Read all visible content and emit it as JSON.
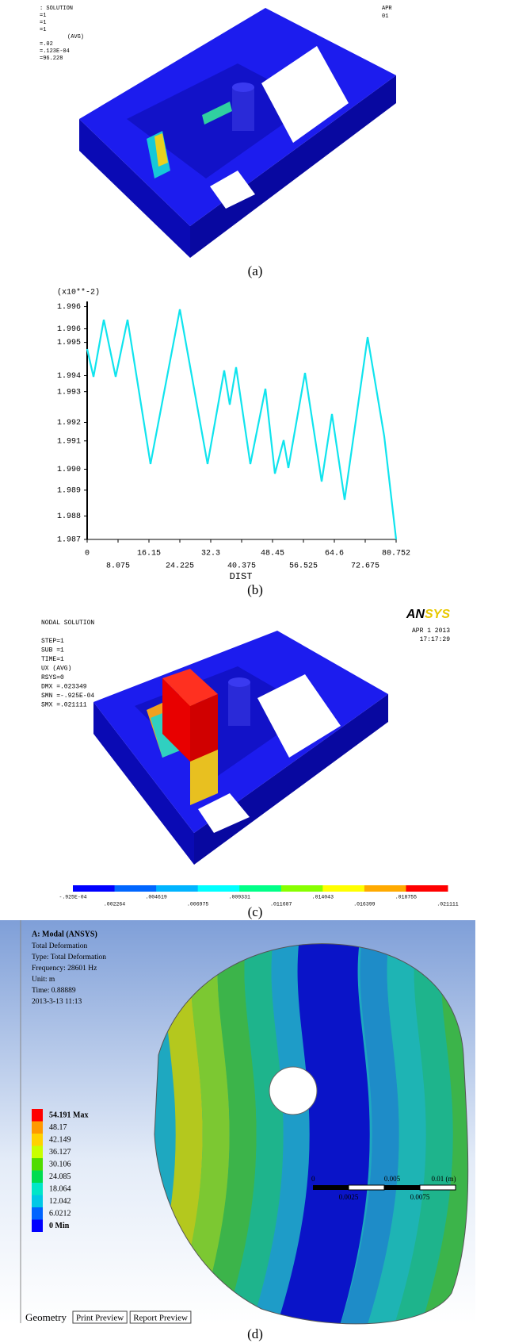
{
  "panel_a": {
    "caption": "(a)",
    "info_lines": [
      ": SOLUTION",
      "=1",
      "=1",
      "=1",
      "(AVG)",
      "=.02",
      "=.123E-04",
      "=96.228"
    ],
    "date_lines": [
      "APR",
      "01"
    ]
  },
  "chart_data": {
    "type": "line",
    "caption": "(b)",
    "y_multiplier": "(x10**-2)",
    "x_label": "DIST",
    "x": [
      0,
      1.66,
      4.35,
      7.45,
      10.56,
      16.56,
      24.23,
      31.47,
      35.82,
      37.27,
      38.93,
      42.65,
      46.59,
      49.07,
      51.35,
      52.59,
      56.94,
      61.29,
      63.98,
      67.29,
      73.3,
      77.64,
      80.752
    ],
    "values": [
      1.99473,
      1.9936,
      1.99592,
      1.9936,
      1.99592,
      1.99006,
      1.99634,
      1.99006,
      1.99386,
      1.99247,
      1.99399,
      1.99006,
      1.99312,
      1.98967,
      1.99103,
      1.9899,
      1.99376,
      1.98935,
      1.99209,
      1.98861,
      1.99521,
      1.99119,
      1.987
    ],
    "color": "#10e4ee",
    "xlim": [
      0,
      80.752
    ],
    "xticks": [
      0,
      8.075,
      16.15,
      24.225,
      32.3,
      40.375,
      48.45,
      56.525,
      64.6,
      72.675,
      80.752
    ],
    "ylim": [
      1.987,
      1.9965
    ],
    "yticks": [
      1.987,
      {
        "value": 1.98795,
        "label": "1.988"
      },
      1.989,
      {
        "value": 1.98985,
        "label": "1.990"
      },
      1.991,
      {
        "value": 1.99175,
        "label": "1.992"
      },
      1.993,
      {
        "value": 1.99365,
        "label": "1.994"
      },
      1.995,
      {
        "value": 1.99555,
        "label": "1.996"
      },
      {
        "value": 1.99645,
        "label": "1.996"
      }
    ]
  },
  "panel_c": {
    "caption": "(c)",
    "info_lines": [
      "NODAL SOLUTION",
      "",
      "STEP=1",
      "SUB =1",
      "TIME=1",
      "UX       (AVG)",
      "RSYS=0",
      "DMX =.023349",
      "SMN =-.925E-04",
      "SMX =.021111"
    ],
    "logo": [
      "AN",
      "SYS"
    ],
    "date_lines": [
      "APR  1 2013",
      "17:17:29"
    ],
    "legend": {
      "colors": [
        "#0000ff",
        "#0066ff",
        "#00b4ff",
        "#00ffff",
        "#00ff88",
        "#88ff00",
        "#ffff00",
        "#ffaa00",
        "#ff0000"
      ],
      "labels": [
        "-.925E-04",
        ".002264",
        ".004619",
        ".006975",
        ".009331",
        ".011687",
        ".014043",
        ".016399",
        ".018755",
        ".021111"
      ]
    }
  },
  "panel_d": {
    "caption": "(d)",
    "title": "A: Modal (ANSYS)",
    "info_lines": [
      "Total Deformation",
      "Type: Total Deformation",
      "Frequency: 28601 Hz",
      "Unit: m",
      "Time: 0.88889",
      "2013-3-13 11:13"
    ],
    "legend": {
      "colors": [
        "#ff0000",
        "#ff9900",
        "#ffd200",
        "#c8ff00",
        "#50dc00",
        "#00dc50",
        "#00e6c8",
        "#00c8e6",
        "#0064ff",
        "#0000ff"
      ],
      "labels": [
        "54.191 Max",
        "48.17",
        "42.149",
        "36.127",
        "30.106",
        "24.085",
        "18.064",
        "12.042",
        "6.0212",
        "0 Min"
      ]
    },
    "scale_top": [
      "0",
      "0.005",
      "0.01 (m)"
    ],
    "scale_bottom": [
      "0.0025",
      "0.0075"
    ],
    "tabs": [
      "Geometry",
      "Print Preview",
      "Report Preview"
    ]
  }
}
